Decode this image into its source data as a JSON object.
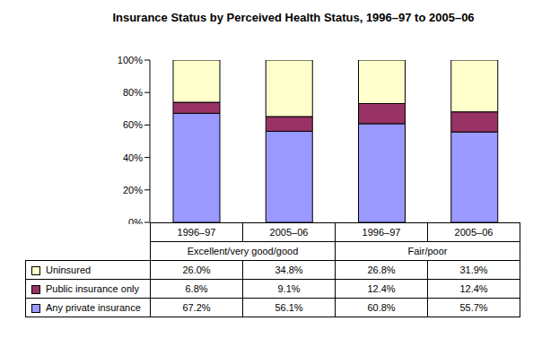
{
  "chart_data": {
    "type": "bar",
    "title": "Insurance Status by Perceived Health Status, 1996–97 to 2005–06",
    "stacked": true,
    "grid": false,
    "categories": [
      "1996–97",
      "2005–06",
      "1996–97",
      "2005–06"
    ],
    "groups": [
      "Excellent/very good/good",
      "Excellent/very good/good",
      "Fair/poor",
      "Fair/poor"
    ],
    "series": [
      {
        "name": "Any private insurance",
        "color": "#9999ff",
        "values": [
          67.2,
          56.1,
          60.8,
          55.7
        ],
        "value_labels": [
          "67.2%",
          "56.1%",
          "60.8%",
          "55.7%"
        ]
      },
      {
        "name": "Public insurance only",
        "color": "#993366",
        "values": [
          6.8,
          9.1,
          12.4,
          12.4
        ],
        "value_labels": [
          "6.8%",
          "9.1%",
          "12.4%",
          "12.4%"
        ]
      },
      {
        "name": "Uninsured",
        "color": "#ffffcc",
        "values": [
          26.0,
          34.8,
          26.8,
          31.9
        ],
        "value_labels": [
          "26.0%",
          "34.8%",
          "26.8%",
          "31.9%"
        ]
      }
    ],
    "ylim": [
      0,
      100
    ],
    "yticks": [
      {
        "value": 0,
        "label": "0%"
      },
      {
        "value": 20,
        "label": "20%"
      },
      {
        "value": 40,
        "label": "40%"
      },
      {
        "value": 60,
        "label": "60%"
      },
      {
        "value": 80,
        "label": "80%"
      },
      {
        "value": 100,
        "label": "100%"
      }
    ]
  }
}
